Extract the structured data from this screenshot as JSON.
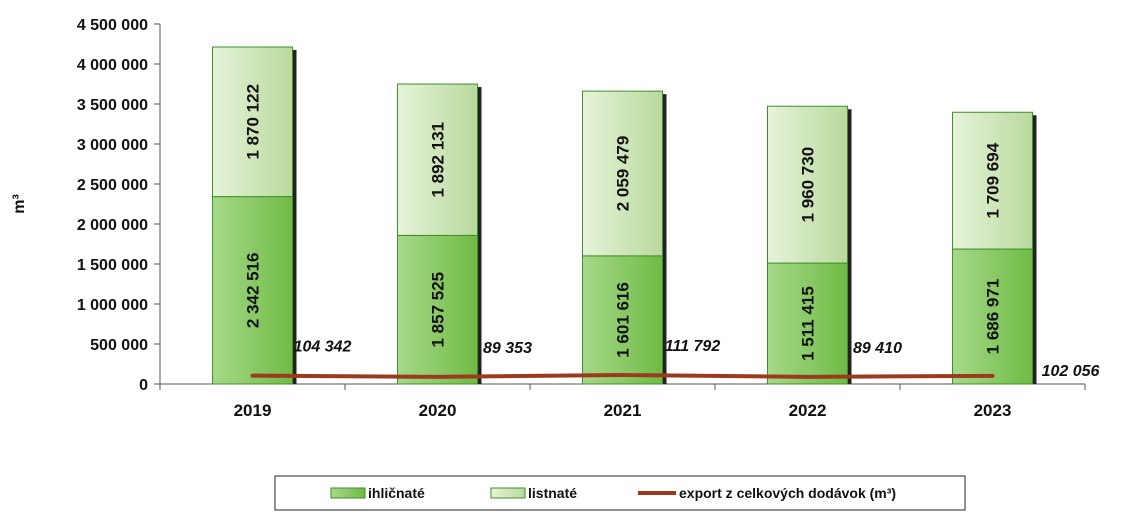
{
  "chart_data": {
    "type": "bar",
    "stacked": true,
    "categories": [
      "2019",
      "2020",
      "2021",
      "2022",
      "2023"
    ],
    "ylabel": "m³",
    "ylim": [
      0,
      4500000
    ],
    "yticks": [
      0,
      500000,
      1000000,
      1500000,
      2000000,
      2500000,
      3000000,
      3500000,
      4000000,
      4500000
    ],
    "ytick_labels": [
      "0",
      "500 000",
      "1 000 000",
      "1 500 000",
      "2 000 000",
      "2 500 000",
      "3 000 000",
      "3 500 000",
      "4 000 000",
      "4 500 000"
    ],
    "grid": false,
    "legend_position": "bottom",
    "series": [
      {
        "name": "ihličnaté",
        "kind": "bar",
        "values": [
          2342516,
          1857525,
          1601616,
          1511415,
          1686971
        ],
        "labels": [
          "2 342 516",
          "1 857 525",
          "1 601 616",
          "1 511 415",
          "1 686 971"
        ],
        "color": "#7dc35b"
      },
      {
        "name": "listnaté",
        "kind": "bar",
        "values": [
          1870122,
          1892131,
          2059479,
          1960730,
          1709694
        ],
        "labels": [
          "1 870 122",
          "1 892 131",
          "2 059 479",
          "1 960 730",
          "1 709 694"
        ],
        "color": "#cfe6b8"
      },
      {
        "name": "export z celkových dodávok (m³)",
        "kind": "line",
        "values": [
          104342,
          89353,
          111792,
          89410,
          102056
        ],
        "labels": [
          "104 342",
          "89 353",
          "111 792",
          "89 410",
          "102 056"
        ],
        "color": "#9b3a1c"
      }
    ]
  }
}
